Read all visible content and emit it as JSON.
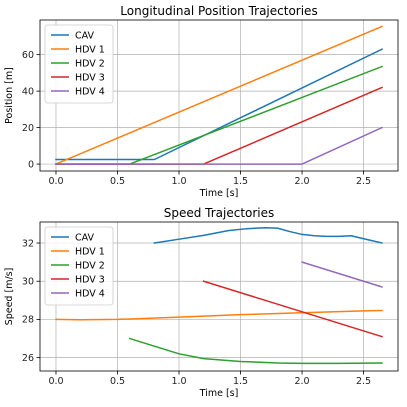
{
  "chart_data": [
    {
      "type": "line",
      "title": "Longitudinal Position Trajectories",
      "xlabel": "Time [s]",
      "ylabel": "Position [m]",
      "xlim": [
        -0.13,
        2.78
      ],
      "ylim": [
        -3.8,
        79
      ],
      "xticks": [
        0.0,
        0.5,
        1.0,
        1.5,
        2.0,
        2.5
      ],
      "xtick_labels": [
        "0.0",
        "0.5",
        "1.0",
        "1.5",
        "2.0",
        "2.5"
      ],
      "yticks": [
        0,
        20,
        40,
        60
      ],
      "ytick_labels": [
        "0",
        "20",
        "40",
        "60"
      ],
      "grid": true,
      "legend": "upper-left",
      "series": [
        {
          "name": "CAV",
          "color": "#1f77b4",
          "x": [
            0.0,
            0.8,
            2.65
          ],
          "y": [
            2.5,
            2.5,
            63.0
          ]
        },
        {
          "name": "HDV 1",
          "color": "#ff7f0e",
          "x": [
            0.0,
            2.65
          ],
          "y": [
            0.0,
            75.5
          ]
        },
        {
          "name": "HDV 2",
          "color": "#2ca02c",
          "x": [
            0.0,
            0.6,
            2.65
          ],
          "y": [
            0.0,
            0.0,
            53.5
          ]
        },
        {
          "name": "HDV 3",
          "color": "#d62728",
          "x": [
            0.0,
            1.2,
            2.65
          ],
          "y": [
            0.0,
            0.0,
            42.0
          ]
        },
        {
          "name": "HDV 4",
          "color": "#9467bd",
          "x": [
            0.0,
            2.0,
            2.65
          ],
          "y": [
            0.0,
            0.0,
            20.0
          ]
        }
      ]
    },
    {
      "type": "line",
      "title": "Speed Trajectories",
      "xlabel": "Time [s]",
      "ylabel": "Speed [m/s]",
      "xlim": [
        -0.13,
        2.78
      ],
      "ylim": [
        25.3,
        33.1
      ],
      "xticks": [
        0.0,
        0.5,
        1.0,
        1.5,
        2.0,
        2.5
      ],
      "xtick_labels": [
        "0.0",
        "0.5",
        "1.0",
        "1.5",
        "2.0",
        "2.5"
      ],
      "yticks": [
        26,
        28,
        30,
        32
      ],
      "ytick_labels": [
        "26",
        "28",
        "30",
        "32"
      ],
      "grid": true,
      "legend": "upper-left",
      "series": [
        {
          "name": "CAV",
          "color": "#1f77b4",
          "x": [
            0.8,
            1.0,
            1.2,
            1.4,
            1.55,
            1.7,
            1.8,
            1.9,
            2.0,
            2.1,
            2.2,
            2.3,
            2.4,
            2.45,
            2.55,
            2.65
          ],
          "y": [
            32.0,
            32.2,
            32.4,
            32.65,
            32.75,
            32.8,
            32.78,
            32.6,
            32.45,
            32.38,
            32.35,
            32.35,
            32.38,
            32.3,
            32.15,
            32.0
          ]
        },
        {
          "name": "HDV 1",
          "color": "#ff7f0e",
          "x": [
            0.0,
            0.2,
            0.5,
            1.0,
            1.5,
            2.0,
            2.5,
            2.65
          ],
          "y": [
            28.0,
            27.98,
            28.0,
            28.12,
            28.25,
            28.35,
            28.45,
            28.47
          ]
        },
        {
          "name": "HDV 2",
          "color": "#2ca02c",
          "x": [
            0.6,
            0.8,
            1.0,
            1.2,
            1.5,
            1.8,
            2.0,
            2.3,
            2.65
          ],
          "y": [
            27.0,
            26.6,
            26.2,
            25.95,
            25.8,
            25.72,
            25.7,
            25.7,
            25.72
          ]
        },
        {
          "name": "HDV 3",
          "color": "#d62728",
          "x": [
            1.2,
            2.65
          ],
          "y": [
            30.0,
            27.1
          ]
        },
        {
          "name": "HDV 4",
          "color": "#9467bd",
          "x": [
            2.0,
            2.65
          ],
          "y": [
            31.0,
            29.7
          ]
        }
      ]
    }
  ]
}
